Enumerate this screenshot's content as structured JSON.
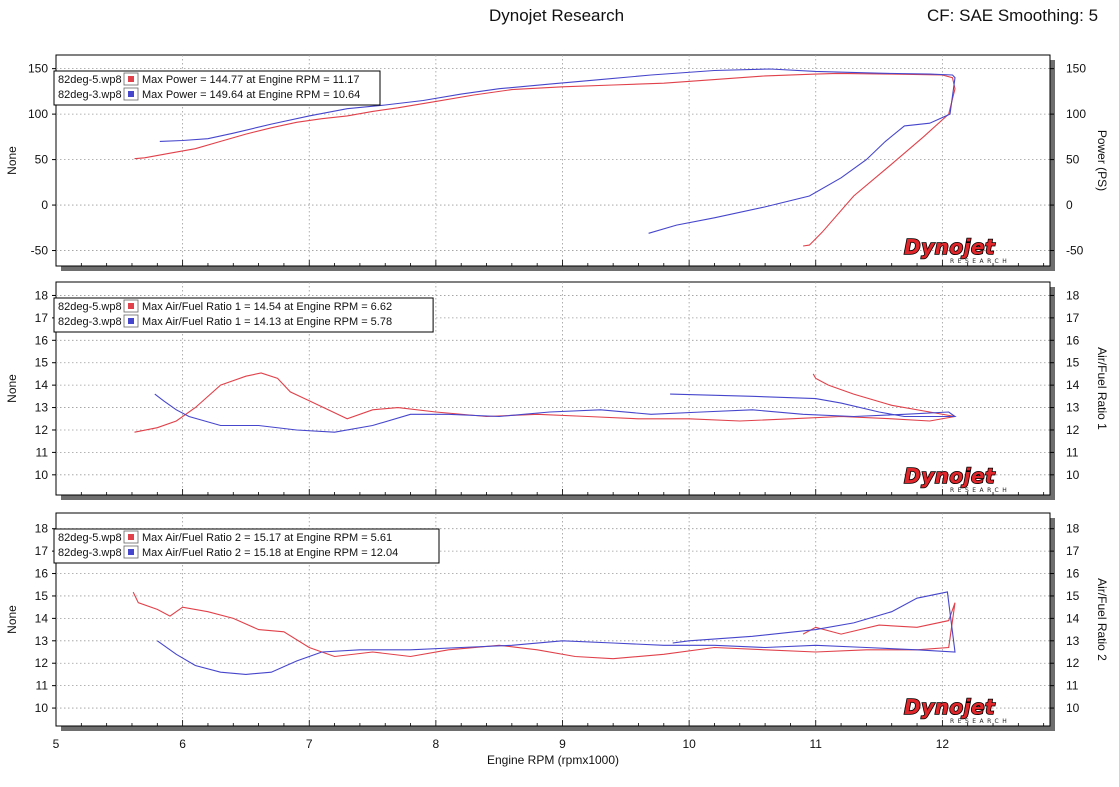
{
  "header": {
    "title": "Dynojet Research",
    "right": "CF: SAE Smoothing: 5"
  },
  "logo": {
    "text": "Dynojet",
    "sub": "RESEARCH"
  },
  "colors": {
    "series_red": "#e0414a",
    "series_blue": "#4646cc",
    "panel_bg": "#ffffff",
    "shadow": "#6e6e6e"
  },
  "chart_data": [
    {
      "type": "line",
      "ylabel_left": "None",
      "ylabel_right": "Power (PS)",
      "xlim": [
        5,
        12.85
      ],
      "ylim": [
        -67,
        165
      ],
      "yticks": [
        -50,
        0,
        50,
        100,
        150
      ],
      "legend": [
        {
          "file": "82deg-5.wp8",
          "text": "Max Power = 144.77 at Engine RPM = 11.17"
        },
        {
          "file": "82deg-3.wp8",
          "text": "Max Power = 149.64 at Engine RPM = 10.64"
        }
      ],
      "series": [
        {
          "color": "red",
          "points": [
            [
              5.62,
              51
            ],
            [
              5.7,
              52
            ],
            [
              5.9,
              57
            ],
            [
              6.1,
              62
            ],
            [
              6.3,
              70
            ],
            [
              6.5,
              78
            ],
            [
              6.7,
              85
            ],
            [
              6.9,
              91
            ],
            [
              7.1,
              95
            ],
            [
              7.3,
              98
            ],
            [
              7.5,
              103
            ],
            [
              7.7,
              107
            ],
            [
              8,
              114
            ],
            [
              8.3,
              121
            ],
            [
              8.6,
              127
            ],
            [
              9,
              130
            ],
            [
              9.4,
              132
            ],
            [
              9.8,
              134
            ],
            [
              10.2,
              138
            ],
            [
              10.6,
              142
            ],
            [
              11,
              144
            ],
            [
              11.17,
              144.8
            ],
            [
              11.6,
              144
            ],
            [
              12,
              143
            ],
            [
              12.08,
              140
            ],
            [
              12.1,
              128
            ],
            [
              12.05,
              100
            ],
            [
              11.85,
              75
            ],
            [
              11.6,
              45
            ],
            [
              11.3,
              10
            ],
            [
              11.05,
              -30
            ],
            [
              10.95,
              -44
            ],
            [
              10.9,
              -45
            ]
          ]
        },
        {
          "color": "blue",
          "points": [
            [
              5.82,
              70
            ],
            [
              6,
              71
            ],
            [
              6.2,
              73
            ],
            [
              6.4,
              79
            ],
            [
              6.7,
              89
            ],
            [
              7,
              98
            ],
            [
              7.3,
              106
            ],
            [
              7.6,
              110
            ],
            [
              7.9,
              115
            ],
            [
              8.2,
              122
            ],
            [
              8.5,
              128
            ],
            [
              8.9,
              133
            ],
            [
              9.3,
              138
            ],
            [
              9.7,
              143
            ],
            [
              10.2,
              148
            ],
            [
              10.64,
              149.6
            ],
            [
              11,
              147
            ],
            [
              11.5,
              145
            ],
            [
              11.9,
              144
            ],
            [
              12.08,
              143
            ],
            [
              12.1,
              140
            ],
            [
              12.06,
              100
            ],
            [
              11.9,
              90
            ],
            [
              11.7,
              87
            ],
            [
              11.55,
              70
            ],
            [
              11.4,
              50
            ],
            [
              11.2,
              30
            ],
            [
              10.95,
              10
            ],
            [
              10.6,
              -2
            ],
            [
              10.2,
              -14
            ],
            [
              9.9,
              -22
            ],
            [
              9.68,
              -31
            ]
          ]
        }
      ]
    },
    {
      "type": "line",
      "ylabel_left": "None",
      "ylabel_right": "Air/Fuel Ratio 1",
      "xlim": [
        5,
        12.85
      ],
      "ylim": [
        9.1,
        18.6
      ],
      "yticks": [
        10,
        11,
        12,
        13,
        14,
        15,
        16,
        17,
        18
      ],
      "legend": [
        {
          "file": "82deg-5.wp8",
          "text": "Max Air/Fuel Ratio 1 = 14.54 at Engine RPM = 6.62"
        },
        {
          "file": "82deg-3.wp8",
          "text": "Max Air/Fuel Ratio 1 = 14.13 at Engine RPM = 5.78"
        }
      ],
      "series": [
        {
          "color": "red",
          "points": [
            [
              5.62,
              11.9
            ],
            [
              5.8,
              12.1
            ],
            [
              5.95,
              12.4
            ],
            [
              6.1,
              13
            ],
            [
              6.3,
              14
            ],
            [
              6.5,
              14.4
            ],
            [
              6.62,
              14.54
            ],
            [
              6.75,
              14.3
            ],
            [
              6.85,
              13.7
            ],
            [
              7,
              13.3
            ],
            [
              7.15,
              12.9
            ],
            [
              7.3,
              12.5
            ],
            [
              7.5,
              12.9
            ],
            [
              7.7,
              13
            ],
            [
              8,
              12.8
            ],
            [
              8.4,
              12.6
            ],
            [
              8.8,
              12.7
            ],
            [
              9.2,
              12.6
            ],
            [
              9.6,
              12.5
            ],
            [
              10,
              12.5
            ],
            [
              10.4,
              12.4
            ],
            [
              10.8,
              12.5
            ],
            [
              11.2,
              12.6
            ],
            [
              11.6,
              12.5
            ],
            [
              11.9,
              12.4
            ],
            [
              12.1,
              12.6
            ],
            [
              11.9,
              12.8
            ],
            [
              11.6,
              13.1
            ],
            [
              11.3,
              13.6
            ],
            [
              11.1,
              14
            ],
            [
              11,
              14.3
            ],
            [
              10.98,
              14.5
            ]
          ]
        },
        {
          "color": "blue",
          "points": [
            [
              5.78,
              13.6
            ],
            [
              5.85,
              13.3
            ],
            [
              5.95,
              12.9
            ],
            [
              6.05,
              12.6
            ],
            [
              6.3,
              12.2
            ],
            [
              6.6,
              12.2
            ],
            [
              6.9,
              12
            ],
            [
              7.2,
              11.9
            ],
            [
              7.5,
              12.2
            ],
            [
              7.8,
              12.7
            ],
            [
              8.1,
              12.7
            ],
            [
              8.5,
              12.6
            ],
            [
              8.9,
              12.8
            ],
            [
              9.3,
              12.9
            ],
            [
              9.7,
              12.7
            ],
            [
              10.1,
              12.8
            ],
            [
              10.5,
              12.9
            ],
            [
              10.9,
              12.7
            ],
            [
              11.3,
              12.6
            ],
            [
              11.7,
              12.7
            ],
            [
              12.05,
              12.8
            ],
            [
              12.1,
              12.6
            ],
            [
              11.9,
              12.6
            ],
            [
              11.7,
              12.6
            ],
            [
              11.5,
              12.8
            ],
            [
              11.2,
              13.2
            ],
            [
              11,
              13.4
            ],
            [
              10.5,
              13.5
            ],
            [
              9.85,
              13.6
            ]
          ]
        }
      ]
    },
    {
      "type": "line",
      "ylabel_left": "None",
      "ylabel_right": "Air/Fuel Ratio 2",
      "xlim": [
        5,
        12.85
      ],
      "ylim": [
        9.2,
        18.7
      ],
      "yticks": [
        10,
        11,
        12,
        13,
        14,
        15,
        16,
        17,
        18
      ],
      "xticks": [
        5,
        6,
        7,
        8,
        9,
        10,
        11,
        12
      ],
      "xlabel": "Engine RPM (rpmx1000)",
      "legend": [
        {
          "file": "82deg-5.wp8",
          "text": "Max Air/Fuel Ratio 2 = 15.17 at Engine RPM = 5.61"
        },
        {
          "file": "82deg-3.wp8",
          "text": "Max Air/Fuel Ratio 2 = 15.18 at Engine RPM = 12.04"
        }
      ],
      "series": [
        {
          "color": "red",
          "points": [
            [
              5.61,
              15.17
            ],
            [
              5.65,
              14.7
            ],
            [
              5.8,
              14.4
            ],
            [
              5.9,
              14.1
            ],
            [
              6,
              14.5
            ],
            [
              6.2,
              14.3
            ],
            [
              6.4,
              14
            ],
            [
              6.6,
              13.5
            ],
            [
              6.8,
              13.4
            ],
            [
              7,
              12.7
            ],
            [
              7.2,
              12.3
            ],
            [
              7.5,
              12.5
            ],
            [
              7.8,
              12.3
            ],
            [
              8.1,
              12.6
            ],
            [
              8.5,
              12.8
            ],
            [
              8.8,
              12.6
            ],
            [
              9.1,
              12.3
            ],
            [
              9.4,
              12.2
            ],
            [
              9.8,
              12.4
            ],
            [
              10.2,
              12.7
            ],
            [
              10.6,
              12.6
            ],
            [
              11,
              12.5
            ],
            [
              11.4,
              12.6
            ],
            [
              11.8,
              12.6
            ],
            [
              12.05,
              12.7
            ],
            [
              12.1,
              14.7
            ],
            [
              12.05,
              13.9
            ],
            [
              11.8,
              13.6
            ],
            [
              11.5,
              13.7
            ],
            [
              11.2,
              13.3
            ],
            [
              11,
              13.6
            ],
            [
              10.9,
              13.3
            ]
          ]
        },
        {
          "color": "blue",
          "points": [
            [
              5.8,
              13
            ],
            [
              5.95,
              12.4
            ],
            [
              6.1,
              11.9
            ],
            [
              6.3,
              11.6
            ],
            [
              6.5,
              11.5
            ],
            [
              6.7,
              11.6
            ],
            [
              6.9,
              12.1
            ],
            [
              7.1,
              12.5
            ],
            [
              7.4,
              12.6
            ],
            [
              7.8,
              12.6
            ],
            [
              8.2,
              12.7
            ],
            [
              8.6,
              12.8
            ],
            [
              9,
              13
            ],
            [
              9.4,
              12.9
            ],
            [
              9.8,
              12.8
            ],
            [
              10.2,
              12.8
            ],
            [
              10.6,
              12.7
            ],
            [
              11,
              12.8
            ],
            [
              11.4,
              12.7
            ],
            [
              11.8,
              12.6
            ],
            [
              12.1,
              12.5
            ],
            [
              12.04,
              15.18
            ],
            [
              11.8,
              14.9
            ],
            [
              11.6,
              14.3
            ],
            [
              11.3,
              13.8
            ],
            [
              11,
              13.5
            ],
            [
              10.5,
              13.2
            ],
            [
              10,
              13
            ],
            [
              9.87,
              12.9
            ]
          ]
        }
      ]
    }
  ]
}
